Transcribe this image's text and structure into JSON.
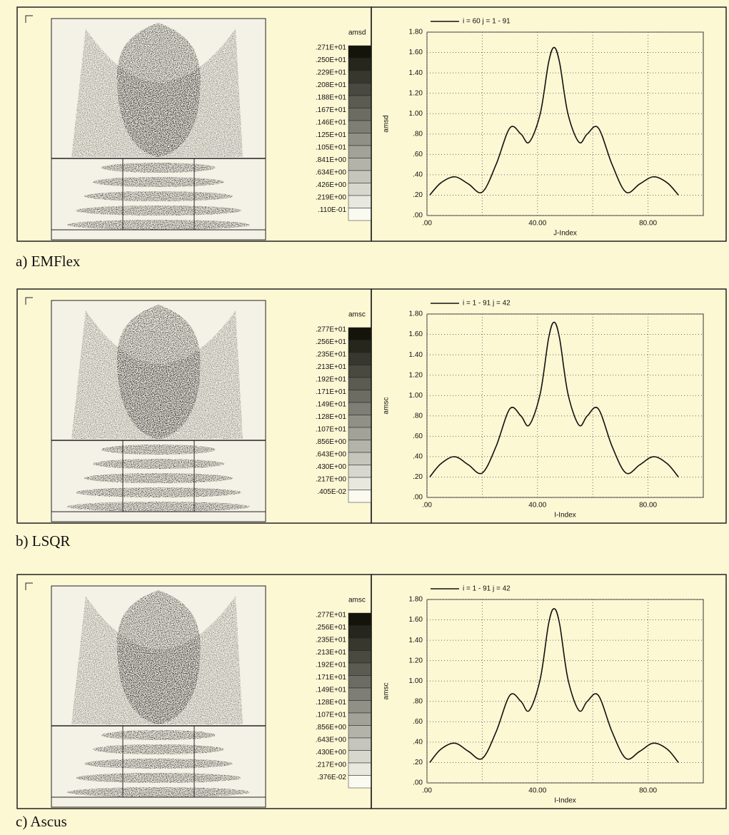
{
  "chart_data": [
    {
      "type": "line",
      "caption": "a) EMFlex",
      "colorbar": {
        "title": "amsd",
        "labels": [
          ".271E+01",
          ".250E+01",
          ".229E+01",
          ".208E+01",
          ".188E+01",
          ".167E+01",
          ".146E+01",
          ".125E+01",
          ".105E+01",
          ".841E+00",
          ".634E+00",
          ".426E+00",
          ".219E+00",
          ".110E-01"
        ]
      },
      "xlabel": "J-Index",
      "ylabel": "amsd",
      "x": [
        1,
        5,
        10,
        15,
        20,
        25,
        30,
        34,
        37,
        41,
        44,
        46,
        48,
        51,
        55,
        58,
        62,
        67,
        72,
        77,
        82,
        87,
        91
      ],
      "series": [
        {
          "name": "i = 60 j = 1 - 91",
          "color": "#111111",
          "values": [
            0.2,
            0.32,
            0.38,
            0.31,
            0.23,
            0.5,
            0.86,
            0.8,
            0.72,
            1.0,
            1.5,
            1.65,
            1.5,
            1.0,
            0.72,
            0.8,
            0.86,
            0.5,
            0.23,
            0.31,
            0.38,
            0.32,
            0.2
          ]
        }
      ],
      "xlim": [
        0,
        100
      ],
      "ylim": [
        0,
        1.8
      ],
      "xticks": [
        {
          "value": 0,
          "label": ".00"
        },
        {
          "value": 40,
          "label": "40.00"
        },
        {
          "value": 80,
          "label": "80.00"
        }
      ],
      "xminor": [
        20,
        60
      ],
      "yticks": [
        {
          "value": 0,
          "label": ".00"
        },
        {
          "value": 0.2,
          "label": ".20"
        },
        {
          "value": 0.4,
          "label": ".40"
        },
        {
          "value": 0.6,
          "label": ".60"
        },
        {
          "value": 0.8,
          "label": ".80"
        },
        {
          "value": 1.0,
          "label": "1.00"
        },
        {
          "value": 1.2,
          "label": "1.20"
        },
        {
          "value": 1.4,
          "label": "1.40"
        },
        {
          "value": 1.6,
          "label": "1.60"
        },
        {
          "value": 1.8,
          "label": "1.80"
        }
      ],
      "grid": true
    },
    {
      "type": "line",
      "caption": "b) LSQR",
      "colorbar": {
        "title": "amsc",
        "labels": [
          ".277E+01",
          ".256E+01",
          ".235E+01",
          ".213E+01",
          ".192E+01",
          ".171E+01",
          ".149E+01",
          ".128E+01",
          ".107E+01",
          ".856E+00",
          ".643E+00",
          ".430E+00",
          ".217E+00",
          ".405E-02"
        ]
      },
      "xlabel": "I-Index",
      "ylabel": "amsc",
      "x": [
        1,
        5,
        10,
        15,
        20,
        25,
        30,
        34,
        37,
        41,
        44,
        46,
        48,
        51,
        55,
        58,
        62,
        67,
        72,
        77,
        82,
        87,
        91
      ],
      "series": [
        {
          "name": "i = 1 - 91 j = 42",
          "color": "#111111",
          "values": [
            0.2,
            0.33,
            0.4,
            0.32,
            0.24,
            0.5,
            0.87,
            0.8,
            0.71,
            1.02,
            1.56,
            1.72,
            1.56,
            1.02,
            0.71,
            0.8,
            0.87,
            0.5,
            0.24,
            0.32,
            0.4,
            0.33,
            0.2
          ]
        }
      ],
      "xlim": [
        0,
        100
      ],
      "ylim": [
        0,
        1.8
      ],
      "xticks": [
        {
          "value": 0,
          "label": ".00"
        },
        {
          "value": 40,
          "label": "40.00"
        },
        {
          "value": 80,
          "label": "80.00"
        }
      ],
      "xminor": [
        20,
        60
      ],
      "yticks": [
        {
          "value": 0,
          "label": ".00"
        },
        {
          "value": 0.2,
          "label": ".20"
        },
        {
          "value": 0.4,
          "label": ".40"
        },
        {
          "value": 0.6,
          "label": ".60"
        },
        {
          "value": 0.8,
          "label": ".80"
        },
        {
          "value": 1.0,
          "label": "1.00"
        },
        {
          "value": 1.2,
          "label": "1.20"
        },
        {
          "value": 1.4,
          "label": "1.40"
        },
        {
          "value": 1.6,
          "label": "1.60"
        },
        {
          "value": 1.8,
          "label": "1.80"
        }
      ],
      "grid": true
    },
    {
      "type": "line",
      "caption": "c) Ascus",
      "colorbar": {
        "title": "amsc",
        "labels": [
          ".277E+01",
          ".256E+01",
          ".235E+01",
          ".213E+01",
          ".192E+01",
          ".171E+01",
          ".149E+01",
          ".128E+01",
          ".107E+01",
          ".856E+00",
          ".643E+00",
          ".430E+00",
          ".217E+00",
          ".376E-02"
        ]
      },
      "xlabel": "I-Index",
      "ylabel": "amsc",
      "x": [
        1,
        5,
        10,
        15,
        20,
        25,
        30,
        34,
        37,
        41,
        44,
        46,
        48,
        51,
        55,
        58,
        62,
        67,
        72,
        77,
        82,
        87,
        91
      ],
      "series": [
        {
          "name": "i = 1 - 91 j = 42",
          "color": "#111111",
          "values": [
            0.2,
            0.33,
            0.39,
            0.31,
            0.24,
            0.5,
            0.86,
            0.8,
            0.71,
            1.02,
            1.56,
            1.71,
            1.56,
            1.02,
            0.71,
            0.8,
            0.86,
            0.5,
            0.24,
            0.31,
            0.39,
            0.33,
            0.2
          ]
        }
      ],
      "xlim": [
        0,
        100
      ],
      "ylim": [
        0,
        1.8
      ],
      "xticks": [
        {
          "value": 0,
          "label": ".00"
        },
        {
          "value": 40,
          "label": "40.00"
        },
        {
          "value": 80,
          "label": "80.00"
        }
      ],
      "xminor": [
        20,
        60
      ],
      "yticks": [
        {
          "value": 0,
          "label": ".00"
        },
        {
          "value": 0.2,
          "label": ".20"
        },
        {
          "value": 0.4,
          "label": ".40"
        },
        {
          "value": 0.6,
          "label": ".60"
        },
        {
          "value": 0.8,
          "label": ".80"
        },
        {
          "value": 1.0,
          "label": "1.00"
        },
        {
          "value": 1.2,
          "label": "1.20"
        },
        {
          "value": 1.4,
          "label": "1.40"
        },
        {
          "value": 1.6,
          "label": "1.60"
        },
        {
          "value": 1.8,
          "label": "1.80"
        }
      ],
      "grid": true
    }
  ]
}
